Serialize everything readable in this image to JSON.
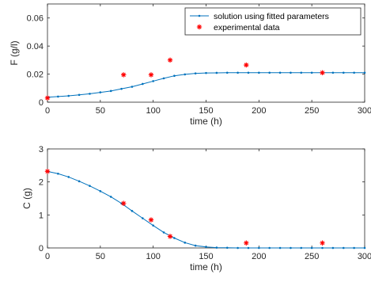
{
  "chart_data": [
    {
      "type": "line",
      "xlabel": "time (h)",
      "ylabel": "F (g/l)",
      "xlim": [
        0,
        300
      ],
      "ylim": [
        0,
        0.07
      ],
      "xticks": [
        0,
        50,
        100,
        150,
        200,
        250,
        300
      ],
      "yticks": [
        0,
        0.02,
        0.04,
        0.06
      ],
      "ytick_labels": [
        "0",
        "0.02",
        "0.04",
        "0.06"
      ],
      "grid": false,
      "legend": {
        "position": "top-right",
        "entries": [
          "solution using fitted parameters",
          "experimental data"
        ]
      },
      "series": [
        {
          "name": "solution using fitted parameters",
          "style": "line-dot",
          "color": "#0072BD",
          "x": [
            0,
            10,
            20,
            30,
            40,
            50,
            60,
            70,
            80,
            90,
            100,
            110,
            120,
            130,
            140,
            150,
            160,
            170,
            180,
            190,
            200,
            210,
            220,
            230,
            240,
            250,
            260,
            270,
            280,
            290,
            300
          ],
          "y": [
            0.0035,
            0.004,
            0.0045,
            0.0052,
            0.006,
            0.007,
            0.008,
            0.0095,
            0.011,
            0.013,
            0.015,
            0.017,
            0.0188,
            0.0198,
            0.0205,
            0.0208,
            0.0209,
            0.021,
            0.021,
            0.021,
            0.021,
            0.021,
            0.021,
            0.021,
            0.021,
            0.021,
            0.021,
            0.021,
            0.021,
            0.021,
            0.021
          ]
        },
        {
          "name": "experimental data",
          "style": "marker-star",
          "color": "#FF0000",
          "x": [
            0,
            72,
            98,
            116,
            188,
            260
          ],
          "y": [
            0.003,
            0.0195,
            0.0195,
            0.03,
            0.0265,
            0.021
          ]
        }
      ]
    },
    {
      "type": "line",
      "xlabel": "time (h)",
      "ylabel": "C (g)",
      "xlim": [
        0,
        300
      ],
      "ylim": [
        0,
        3
      ],
      "xticks": [
        0,
        50,
        100,
        150,
        200,
        250,
        300
      ],
      "yticks": [
        0,
        1,
        2,
        3
      ],
      "ytick_labels": [
        "0",
        "1",
        "2",
        "3"
      ],
      "grid": false,
      "series": [
        {
          "name": "solution using fitted parameters",
          "style": "line-dot",
          "color": "#0072BD",
          "x": [
            0,
            10,
            20,
            30,
            40,
            50,
            60,
            70,
            80,
            90,
            100,
            110,
            120,
            130,
            140,
            150,
            160,
            170,
            180,
            190,
            200,
            210,
            220,
            230,
            240,
            250,
            260,
            270,
            280,
            290,
            300
          ],
          "y": [
            2.32,
            2.25,
            2.15,
            2.02,
            1.88,
            1.72,
            1.55,
            1.35,
            1.12,
            0.9,
            0.68,
            0.47,
            0.3,
            0.16,
            0.07,
            0.03,
            0.01,
            0.005,
            0.0,
            0.0,
            0.0,
            0.0,
            0.0,
            0.0,
            0.0,
            0.0,
            0.0,
            0.0,
            0.0,
            0.0,
            0.0
          ]
        },
        {
          "name": "experimental data",
          "style": "marker-star",
          "color": "#FF0000",
          "x": [
            0,
            72,
            98,
            116,
            188,
            260
          ],
          "y": [
            2.32,
            1.35,
            0.85,
            0.35,
            0.15,
            0.15
          ]
        }
      ]
    }
  ]
}
